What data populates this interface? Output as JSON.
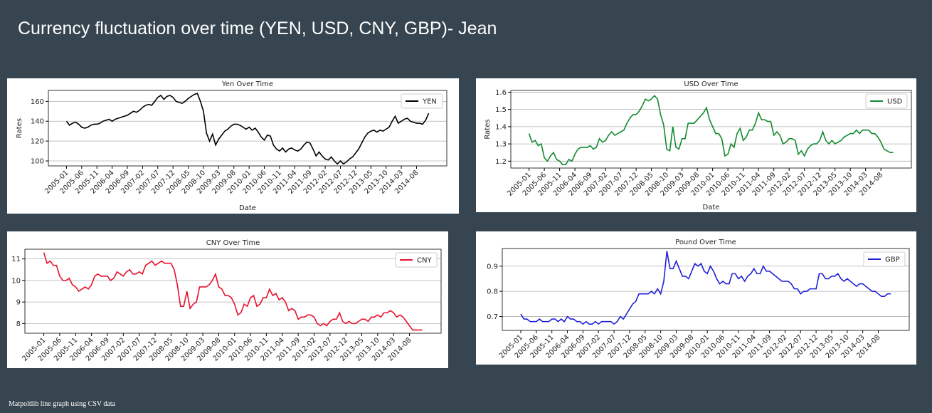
{
  "title": "Currency fluctuation over time (YEN, USD, CNY, GBP)- Jean",
  "footnote": "Matpoltlib line graph using CSV data",
  "chart_data": [
    {
      "type": "line",
      "title": "Yen Over Time",
      "xlabel": "Date",
      "ylabel": "Rates",
      "categories": [
        "2005-01",
        null,
        null,
        null,
        null,
        "2005-06",
        null,
        null,
        null,
        null,
        "2005-11",
        null,
        null,
        null,
        null,
        "2006-04",
        null,
        null,
        null,
        null,
        "2006-09",
        null,
        null,
        null,
        null,
        "2007-02",
        null,
        null,
        null,
        null,
        "2007-07",
        null,
        null,
        null,
        null,
        "2007-12",
        null,
        null,
        null,
        null,
        "2008-05",
        null,
        null,
        null,
        null,
        "2008-10",
        null,
        null,
        null,
        null,
        "2009-03",
        null,
        null,
        null,
        null,
        "2009-08",
        null,
        null,
        null,
        null,
        "2010-01",
        null,
        null,
        null,
        null,
        "2010-06",
        null,
        null,
        null,
        null,
        "2010-11",
        null,
        null,
        null,
        null,
        "2011-04",
        null,
        null,
        null,
        null,
        "2011-09",
        null,
        null,
        null,
        null,
        "2012-02",
        null,
        null,
        null,
        null,
        "2012-07",
        null,
        null,
        null,
        null,
        "2012-12",
        null,
        null,
        null,
        null,
        "2013-05",
        null,
        null,
        null,
        null,
        "2013-10",
        null,
        null,
        null,
        null,
        "2014-03",
        null,
        null,
        null,
        null,
        "2014-08",
        null,
        null,
        null,
        null
      ],
      "series": [
        {
          "name": "YEN",
          "color": "#000000",
          "values": [
            140,
            136,
            138,
            139,
            137,
            134,
            133,
            134,
            136,
            137,
            137,
            138,
            140,
            141,
            142,
            140,
            142,
            143,
            144,
            145,
            146,
            148,
            150,
            149,
            151,
            154,
            156,
            157,
            156,
            160,
            164,
            166,
            162,
            165,
            166,
            164,
            160,
            159,
            158,
            160,
            163,
            165,
            167,
            168,
            160,
            150,
            128,
            120,
            127,
            116,
            122,
            126,
            130,
            132,
            135,
            137,
            137,
            136,
            134,
            132,
            134,
            131,
            133,
            129,
            124,
            121,
            126,
            125,
            116,
            112,
            110,
            113,
            109,
            112,
            113,
            111,
            110,
            112,
            116,
            119,
            118,
            112,
            105,
            109,
            105,
            102,
            101,
            104,
            100,
            97,
            100,
            97,
            99,
            102,
            104,
            108,
            112,
            118,
            124,
            128,
            130,
            131,
            129,
            131,
            130,
            132,
            134,
            140,
            145,
            138,
            140,
            142,
            143,
            140,
            139,
            138,
            138,
            137,
            141,
            148
          ]
        }
      ],
      "ylim": [
        95,
        171
      ],
      "yticks": [
        100,
        120,
        140,
        160
      ],
      "grid": true,
      "legend": "upper right"
    },
    {
      "type": "line",
      "title": "USD Over Time",
      "xlabel": "Date",
      "ylabel": "Rates",
      "categories": [
        "2005-01",
        null,
        null,
        null,
        null,
        "2005-06",
        null,
        null,
        null,
        null,
        "2005-11",
        null,
        null,
        null,
        null,
        "2006-04",
        null,
        null,
        null,
        null,
        "2006-09",
        null,
        null,
        null,
        null,
        "2007-02",
        null,
        null,
        null,
        null,
        "2007-07",
        null,
        null,
        null,
        null,
        "2007-12",
        null,
        null,
        null,
        null,
        "2008-05",
        null,
        null,
        null,
        null,
        "2008-10",
        null,
        null,
        null,
        null,
        "2009-03",
        null,
        null,
        null,
        null,
        "2009-08",
        null,
        null,
        null,
        null,
        "2010-01",
        null,
        null,
        null,
        null,
        "2010-06",
        null,
        null,
        null,
        null,
        "2010-11",
        null,
        null,
        null,
        null,
        "2011-04",
        null,
        null,
        null,
        null,
        "2011-09",
        null,
        null,
        null,
        null,
        "2012-02",
        null,
        null,
        null,
        null,
        "2012-07",
        null,
        null,
        null,
        null,
        "2012-12",
        null,
        null,
        null,
        null,
        "2013-05",
        null,
        null,
        null,
        null,
        "2013-10",
        null,
        null,
        null,
        null,
        "2014-03",
        null,
        null,
        null,
        null,
        "2014-08",
        null,
        null,
        null,
        null
      ],
      "series": [
        {
          "name": "USD",
          "color": "#138a2e",
          "values": [
            1.36,
            1.31,
            1.32,
            1.29,
            1.3,
            1.22,
            1.2,
            1.23,
            1.25,
            1.21,
            1.2,
            1.18,
            1.18,
            1.21,
            1.2,
            1.24,
            1.27,
            1.28,
            1.28,
            1.28,
            1.29,
            1.27,
            1.28,
            1.33,
            1.31,
            1.32,
            1.35,
            1.37,
            1.35,
            1.36,
            1.37,
            1.38,
            1.42,
            1.45,
            1.47,
            1.47,
            1.49,
            1.52,
            1.56,
            1.55,
            1.56,
            1.58,
            1.56,
            1.47,
            1.41,
            1.27,
            1.26,
            1.4,
            1.28,
            1.27,
            1.33,
            1.33,
            1.42,
            1.42,
            1.42,
            1.44,
            1.46,
            1.48,
            1.51,
            1.44,
            1.4,
            1.36,
            1.36,
            1.33,
            1.23,
            1.24,
            1.3,
            1.28,
            1.36,
            1.39,
            1.32,
            1.34,
            1.38,
            1.38,
            1.42,
            1.48,
            1.44,
            1.44,
            1.43,
            1.43,
            1.35,
            1.37,
            1.35,
            1.3,
            1.31,
            1.33,
            1.33,
            1.32,
            1.24,
            1.26,
            1.23,
            1.27,
            1.29,
            1.3,
            1.3,
            1.32,
            1.37,
            1.32,
            1.3,
            1.32,
            1.3,
            1.31,
            1.32,
            1.34,
            1.35,
            1.36,
            1.36,
            1.38,
            1.36,
            1.38,
            1.38,
            1.38,
            1.36,
            1.36,
            1.34,
            1.31,
            1.27,
            1.26,
            1.25,
            1.25
          ]
        }
      ],
      "ylim": [
        1.16,
        1.61
      ],
      "yticks": [
        1.2,
        1.3,
        1.4,
        1.5,
        1.6
      ],
      "grid": true,
      "legend": "upper right"
    },
    {
      "type": "line",
      "title": "CNY Over Time",
      "categories": [
        "2005-01",
        null,
        null,
        null,
        null,
        "2005-06",
        null,
        null,
        null,
        null,
        "2005-11",
        null,
        null,
        null,
        null,
        "2006-04",
        null,
        null,
        null,
        null,
        "2006-09",
        null,
        null,
        null,
        null,
        "2007-02",
        null,
        null,
        null,
        null,
        "2007-07",
        null,
        null,
        null,
        null,
        "2007-12",
        null,
        null,
        null,
        null,
        "2008-05",
        null,
        null,
        null,
        null,
        "2008-10",
        null,
        null,
        null,
        null,
        "2009-03",
        null,
        null,
        null,
        null,
        "2009-08",
        null,
        null,
        null,
        null,
        "2010-01",
        null,
        null,
        null,
        null,
        "2010-06",
        null,
        null,
        null,
        null,
        "2010-11",
        null,
        null,
        null,
        null,
        "2011-04",
        null,
        null,
        null,
        null,
        "2011-09",
        null,
        null,
        null,
        null,
        "2012-02",
        null,
        null,
        null,
        null,
        "2012-07",
        null,
        null,
        null,
        null,
        "2012-12",
        null,
        null,
        null,
        null,
        "2013-05",
        null,
        null,
        null,
        null,
        "2013-10",
        null,
        null,
        null,
        null,
        "2014-03",
        null,
        null,
        null,
        null,
        "2014-08",
        null,
        null,
        null,
        null
      ],
      "series": [
        {
          "name": "CNY",
          "color": "#e8112d",
          "values": [
            11.3,
            10.8,
            10.9,
            10.7,
            10.7,
            10.2,
            10.0,
            10.0,
            10.1,
            9.8,
            9.7,
            9.5,
            9.6,
            9.7,
            9.6,
            9.8,
            10.2,
            10.3,
            10.2,
            10.2,
            10.2,
            10.0,
            10.1,
            10.4,
            10.3,
            10.2,
            10.4,
            10.5,
            10.3,
            10.3,
            10.4,
            10.3,
            10.7,
            10.8,
            10.9,
            10.7,
            10.8,
            10.9,
            10.8,
            10.8,
            10.8,
            10.5,
            9.8,
            8.8,
            8.8,
            9.5,
            8.7,
            8.9,
            9.0,
            9.7,
            9.7,
            9.7,
            9.8,
            10.0,
            10.3,
            9.7,
            9.6,
            9.3,
            9.3,
            9.2,
            8.9,
            8.4,
            8.5,
            8.9,
            8.8,
            9.2,
            9.3,
            8.8,
            8.9,
            9.2,
            9.2,
            9.6,
            9.3,
            9.4,
            9.1,
            9.2,
            9.0,
            8.6,
            8.7,
            8.6,
            8.2,
            8.3,
            8.3,
            8.4,
            8.4,
            8.3,
            8.0,
            7.9,
            8.0,
            7.9,
            8.1,
            8.2,
            8.2,
            8.5,
            8.1,
            8.0,
            8.1,
            8.0,
            8.0,
            8.1,
            8.2,
            8.2,
            8.1,
            8.3,
            8.3,
            8.4,
            8.3,
            8.5,
            8.5,
            8.6,
            8.5,
            8.3,
            8.4,
            8.3,
            8.1,
            7.9,
            7.7,
            7.7,
            7.7,
            7.7
          ]
        }
      ],
      "ylim": [
        7.55,
        11.45
      ],
      "yticks": [
        8,
        9,
        10,
        11
      ],
      "grid": true,
      "legend": "upper right"
    },
    {
      "type": "line",
      "title": "Pound Over Time",
      "categories": [
        "2005-01",
        null,
        null,
        null,
        null,
        "2005-06",
        null,
        null,
        null,
        null,
        "2005-11",
        null,
        null,
        null,
        null,
        "2006-04",
        null,
        null,
        null,
        null,
        "2006-09",
        null,
        null,
        null,
        null,
        "2007-02",
        null,
        null,
        null,
        null,
        "2007-07",
        null,
        null,
        null,
        null,
        "2007-12",
        null,
        null,
        null,
        null,
        "2008-05",
        null,
        null,
        null,
        null,
        "2008-10",
        null,
        null,
        null,
        null,
        "2009-03",
        null,
        null,
        null,
        null,
        "2009-08",
        null,
        null,
        null,
        null,
        "2010-01",
        null,
        null,
        null,
        null,
        "2010-06",
        null,
        null,
        null,
        null,
        "2010-11",
        null,
        null,
        null,
        null,
        "2011-04",
        null,
        null,
        null,
        null,
        "2011-09",
        null,
        null,
        null,
        null,
        "2012-02",
        null,
        null,
        null,
        null,
        "2012-07",
        null,
        null,
        null,
        null,
        "2012-12",
        null,
        null,
        null,
        null,
        "2013-05",
        null,
        null,
        null,
        null,
        "2013-10",
        null,
        null,
        null,
        null,
        "2014-03",
        null,
        null,
        null,
        null,
        "2014-08",
        null,
        null,
        null,
        null
      ],
      "series": [
        {
          "name": "GBP",
          "color": "#2020d8",
          "values": [
            0.71,
            0.69,
            0.69,
            0.68,
            0.68,
            0.68,
            0.69,
            0.68,
            0.68,
            0.68,
            0.69,
            0.69,
            0.68,
            0.69,
            0.68,
            0.7,
            0.69,
            0.69,
            0.68,
            0.68,
            0.67,
            0.68,
            0.67,
            0.67,
            0.68,
            0.67,
            0.68,
            0.68,
            0.68,
            0.68,
            0.67,
            0.68,
            0.7,
            0.69,
            0.71,
            0.73,
            0.75,
            0.76,
            0.79,
            0.79,
            0.79,
            0.79,
            0.8,
            0.79,
            0.81,
            0.79,
            0.84,
            0.96,
            0.89,
            0.89,
            0.92,
            0.89,
            0.86,
            0.86,
            0.85,
            0.88,
            0.91,
            0.9,
            0.91,
            0.88,
            0.87,
            0.9,
            0.88,
            0.85,
            0.83,
            0.84,
            0.83,
            0.83,
            0.87,
            0.87,
            0.85,
            0.86,
            0.84,
            0.86,
            0.87,
            0.89,
            0.87,
            0.87,
            0.9,
            0.88,
            0.88,
            0.87,
            0.86,
            0.85,
            0.84,
            0.84,
            0.84,
            0.83,
            0.81,
            0.81,
            0.79,
            0.8,
            0.8,
            0.81,
            0.81,
            0.81,
            0.87,
            0.87,
            0.85,
            0.85,
            0.86,
            0.86,
            0.87,
            0.85,
            0.84,
            0.85,
            0.84,
            0.83,
            0.82,
            0.83,
            0.83,
            0.82,
            0.81,
            0.8,
            0.8,
            0.79,
            0.78,
            0.78,
            0.79,
            0.79
          ]
        }
      ],
      "ylim": [
        0.645,
        0.97
      ],
      "yticks": [
        0.7,
        0.8,
        0.9
      ],
      "grid": true,
      "legend": "upper right"
    }
  ]
}
